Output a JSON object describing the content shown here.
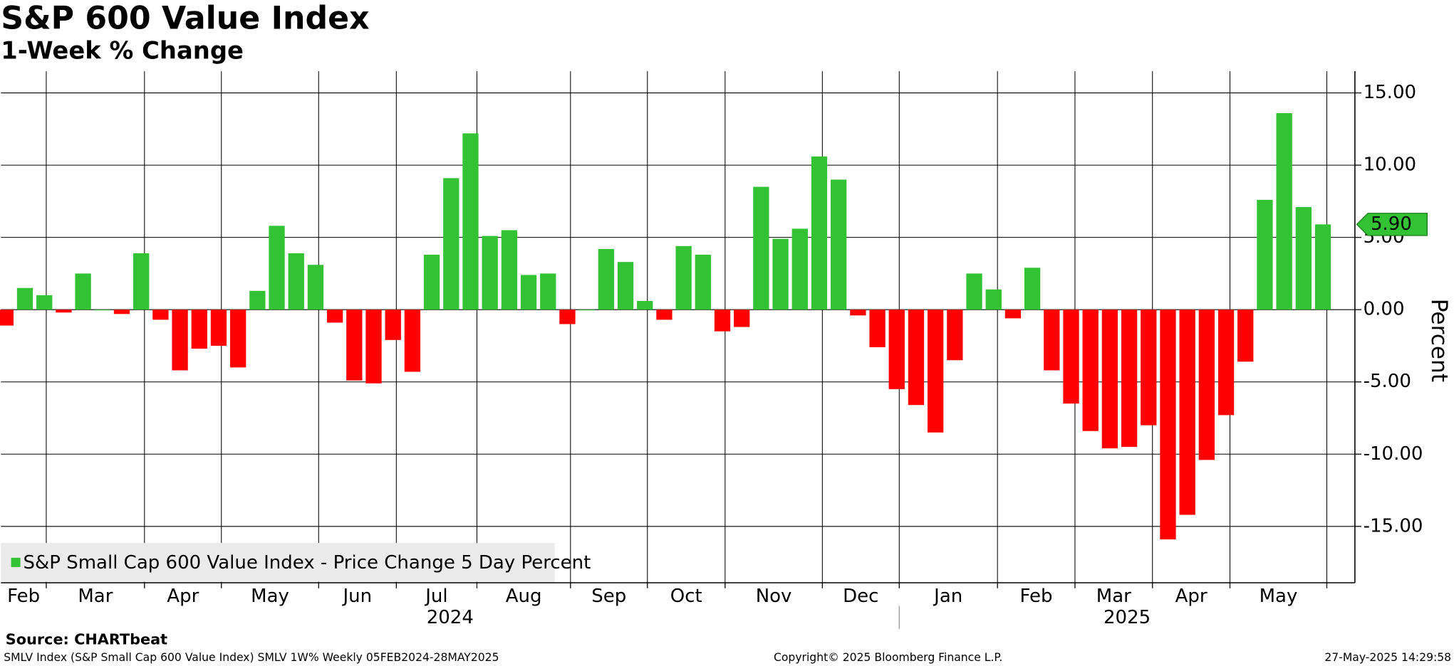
{
  "chart_data": {
    "type": "bar",
    "title": "S&P 600 Value Index",
    "subtitle": "1-Week % Change",
    "y_axis_label": "Percent",
    "legend_label": "S&P Small Cap 600 Value Index - Price Change 5 Day Percent",
    "legend_position": "lower left",
    "positive_color": "#33c233",
    "negative_color": "#ff0000",
    "values": [
      -1.1,
      1.5,
      1.0,
      -0.2,
      2.5,
      0.0,
      -0.3,
      3.9,
      -0.7,
      -4.2,
      -2.7,
      -2.5,
      -4.0,
      1.3,
      5.8,
      3.9,
      3.1,
      -0.9,
      -4.9,
      -5.1,
      -2.1,
      -4.3,
      3.8,
      9.1,
      12.2,
      5.1,
      5.5,
      2.4,
      2.5,
      -1.0,
      0.0,
      4.2,
      3.3,
      0.6,
      -0.7,
      4.4,
      3.8,
      -1.5,
      -1.2,
      8.5,
      4.9,
      5.6,
      10.6,
      9.0,
      -0.4,
      -2.6,
      -5.5,
      -6.6,
      -8.5,
      -3.5,
      2.5,
      1.4,
      -0.6,
      2.9,
      -4.2,
      -6.5,
      -8.4,
      -9.6,
      -9.5,
      -8.0,
      -15.9,
      -14.2,
      -10.4,
      -7.3,
      -3.6,
      7.6,
      13.6,
      7.1,
      5.9
    ],
    "value_labels": [
      null,
      null,
      null,
      null,
      null,
      null,
      null,
      null,
      null,
      null,
      null,
      null,
      null,
      null,
      null,
      null,
      null,
      null,
      null,
      null,
      null,
      null,
      null,
      null,
      null,
      null,
      null,
      null,
      null,
      null,
      null,
      null,
      null,
      null,
      null,
      null,
      null,
      null,
      null,
      null,
      null,
      null,
      null,
      null,
      null,
      null,
      null,
      null,
      null,
      null,
      null,
      null,
      null,
      null,
      null,
      null,
      null,
      null,
      null,
      null,
      null,
      null,
      null,
      null,
      null,
      null,
      null,
      null,
      "5.90"
    ],
    "xlim": [
      -0.24,
      69.65
    ],
    "xticks": [
      2.1,
      7.17,
      11.14,
      16.16,
      20.17,
      24.33,
      29.16,
      33.13,
      37.14,
      42.16,
      46.13,
      51.2,
      55.2,
      59.2,
      63.2,
      68.2
    ],
    "month_labels": [
      "Feb",
      "Mar",
      "Apr",
      "May",
      "Jun",
      "Jul",
      "Aug",
      "Sep",
      "Oct",
      "Nov",
      "Dec",
      "Jan",
      "Feb",
      "Mar",
      "Apr",
      "May"
    ],
    "year_labels": [
      "2024",
      "2025"
    ],
    "ylim": [
      -18.9,
      16.5
    ],
    "yticks": [
      {
        "value": 15,
        "label": "15.00"
      },
      {
        "value": 10,
        "label": "10.00"
      },
      {
        "value": 5,
        "label": "5.00"
      },
      {
        "value": 0,
        "label": "0.00"
      },
      {
        "value": -5,
        "label": "-5.00"
      },
      {
        "value": -10,
        "label": "-10.00"
      },
      {
        "value": -15,
        "label": "-15.00"
      }
    ],
    "grid": true
  },
  "footer": {
    "source": "Source: CHARTbeat",
    "description": "SMLV Index (S&P Small Cap 600 Value Index) SMLV 1W%  Weekly 05FEB2024-28MAY2025",
    "copyright": "Copyright© 2025 Bloomberg Finance L.P.",
    "timestamp": "27-May-2025 14:29:58"
  }
}
